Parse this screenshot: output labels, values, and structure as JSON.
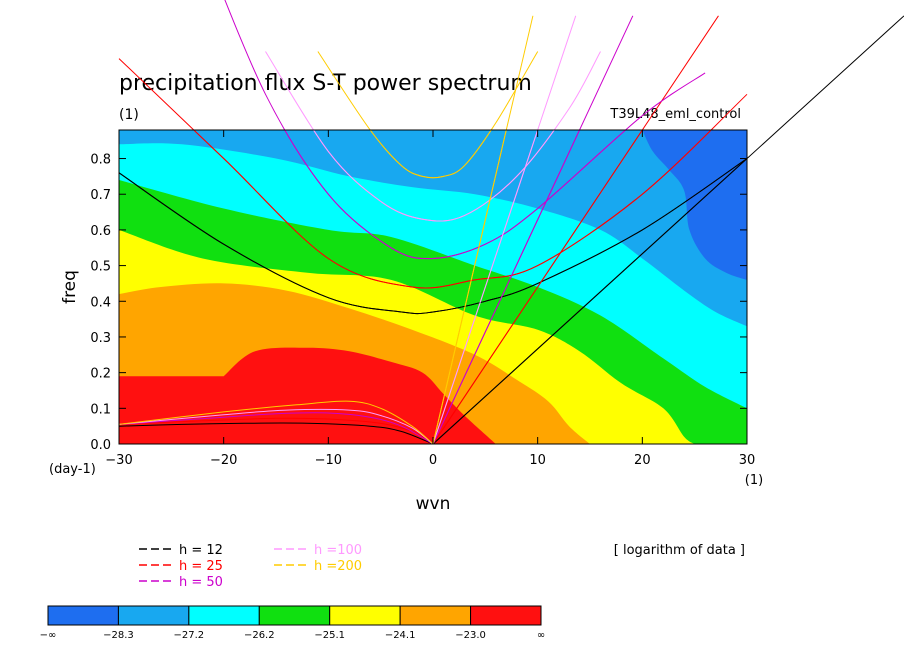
{
  "chart_data": {
    "type": "heatmap",
    "title": "precipitation flux S-T power spectrum",
    "subtitle_left": "(1)",
    "subtitle_right": "T39L48_eml_control",
    "xlabel": "wvn",
    "ylabel": "freq",
    "x_unit_label": "(1)",
    "y_unit_label": "(day-1)",
    "xlim": [
      -30,
      30
    ],
    "ylim": [
      0,
      0.88
    ],
    "x_ticks": [
      -30,
      -20,
      -10,
      0,
      10,
      20,
      30
    ],
    "x_tick_labels": [
      "−30",
      "−20",
      "−10",
      "0",
      "10",
      "20",
      "30"
    ],
    "y_ticks": [
      0,
      0.1,
      0.2,
      0.3,
      0.4,
      0.5,
      0.6,
      0.7,
      0.8
    ],
    "y_tick_labels": [
      "0.0",
      "0.1",
      "0.2",
      "0.3",
      "0.4",
      "0.5",
      "0.6",
      "0.7",
      "0.8"
    ],
    "note": "[ logarithm of data ]",
    "colorbar": {
      "levels": [
        "−∞",
        "−28.3",
        "−27.2",
        "−26.2",
        "−25.1",
        "−24.1",
        "−23.0",
        "∞"
      ],
      "colors": [
        "#1e6ef0",
        "#18a8f0",
        "#00ffff",
        "#10e010",
        "#ffff00",
        "#ffa500",
        "#ff1010"
      ]
    },
    "contour_boundaries": [
      {
        "between": [
          "#1e6ef0",
          "#18a8f0"
        ],
        "points": [
          [
            20,
            0.88
          ],
          [
            21,
            0.82
          ],
          [
            22.5,
            0.77
          ],
          [
            24,
            0.71
          ],
          [
            24.5,
            0.6
          ],
          [
            26,
            0.52
          ],
          [
            28,
            0.48
          ],
          [
            30,
            0.46
          ]
        ]
      },
      {
        "between": [
          "#18a8f0",
          "#00ffff"
        ],
        "points": [
          [
            -30,
            0.84
          ],
          [
            -24,
            0.84
          ],
          [
            -15,
            0.8
          ],
          [
            -8,
            0.75
          ],
          [
            -2,
            0.72
          ],
          [
            4,
            0.7
          ],
          [
            10,
            0.66
          ],
          [
            16,
            0.6
          ],
          [
            20,
            0.52
          ],
          [
            24,
            0.43
          ],
          [
            27,
            0.37
          ],
          [
            30,
            0.33
          ]
        ]
      },
      {
        "between": [
          "#00ffff",
          "#10e010"
        ],
        "points": [
          [
            -30,
            0.74
          ],
          [
            -20,
            0.66
          ],
          [
            -10,
            0.6
          ],
          [
            -4,
            0.58
          ],
          [
            4,
            0.5
          ],
          [
            10,
            0.44
          ],
          [
            16,
            0.36
          ],
          [
            22,
            0.24
          ],
          [
            26,
            0.16
          ],
          [
            30,
            0.1
          ]
        ]
      },
      {
        "between": [
          "#10e010",
          "#ffff00"
        ],
        "points": [
          [
            -30,
            0.6
          ],
          [
            -22,
            0.52
          ],
          [
            -12,
            0.48
          ],
          [
            -4,
            0.46
          ],
          [
            4,
            0.36
          ],
          [
            10,
            0.32
          ],
          [
            14,
            0.26
          ],
          [
            18,
            0.17
          ],
          [
            22,
            0.1
          ],
          [
            24,
            0.02
          ],
          [
            25,
            0
          ]
        ]
      },
      {
        "between": [
          "#ffff00",
          "#ffa500"
        ],
        "points": [
          [
            -30,
            0.42
          ],
          [
            -26,
            0.44
          ],
          [
            -20,
            0.45
          ],
          [
            -14,
            0.43
          ],
          [
            -8,
            0.38
          ],
          [
            -2,
            0.32
          ],
          [
            4,
            0.25
          ],
          [
            8,
            0.18
          ],
          [
            11,
            0.12
          ],
          [
            13,
            0.05
          ],
          [
            15,
            0
          ]
        ]
      },
      {
        "between": [
          "#ffa500",
          "#ff1010"
        ],
        "points": [
          [
            -20,
            0.19
          ],
          [
            -17,
            0.26
          ],
          [
            -12,
            0.27
          ],
          [
            -8,
            0.26
          ],
          [
            -4,
            0.23
          ],
          [
            -1,
            0.2
          ],
          [
            1,
            0.14
          ],
          [
            3,
            0.08
          ],
          [
            6,
            0
          ]
        ]
      }
    ],
    "dispersion_series": [
      {
        "name": "h = 12",
        "color": "#000000",
        "kelvin_x_at_top": 33,
        "curves": [
          {
            "kind": "inertio-gravity",
            "points": [
              [
                -30,
                0.76
              ],
              [
                -20,
                0.56
              ],
              [
                -10,
                0.41
              ],
              [
                -3,
                0.37
              ],
              [
                0,
                0.37
              ],
              [
                5,
                0.4
              ],
              [
                10,
                0.45
              ],
              [
                20,
                0.6
              ],
              [
                30,
                0.8
              ]
            ]
          },
          {
            "kind": "rossby",
            "points": [
              [
                -30,
                0.05
              ],
              [
                -24,
                0.055
              ],
              [
                -18,
                0.058
              ],
              [
                -12,
                0.058
              ],
              [
                -6,
                0.05
              ],
              [
                -3,
                0.035
              ],
              [
                0,
                0
              ]
            ]
          }
        ]
      },
      {
        "name": "h = 25",
        "color": "#ff0000",
        "kelvin_x_at_top": 20,
        "curves": [
          {
            "kind": "inertio-gravity",
            "points": [
              [
                -30,
                1.08
              ],
              [
                -20,
                0.8
              ],
              [
                -10,
                0.52
              ],
              [
                -2,
                0.44
              ],
              [
                4,
                0.46
              ],
              [
                10,
                0.5
              ],
              [
                20,
                0.7
              ],
              [
                30,
                0.98
              ]
            ]
          },
          {
            "kind": "rossby",
            "points": [
              [
                -30,
                0.055
              ],
              [
                -22,
                0.065
              ],
              [
                -15,
                0.072
              ],
              [
                -10,
                0.07
              ],
              [
                -5,
                0.058
              ],
              [
                -2,
                0.035
              ],
              [
                0,
                0
              ]
            ]
          }
        ]
      },
      {
        "name": "h = 50",
        "color": "#cc00cc",
        "kelvin_x_at_top": 14,
        "curves": [
          {
            "kind": "inertio-gravity",
            "points": [
              [
                -22,
                1.4
              ],
              [
                -16,
                0.98
              ],
              [
                -10,
                0.7
              ],
              [
                -4,
                0.55
              ],
              [
                0,
                0.52
              ],
              [
                5,
                0.56
              ],
              [
                10,
                0.66
              ],
              [
                20,
                0.92
              ],
              [
                26,
                1.04
              ]
            ]
          },
          {
            "kind": "rossby",
            "points": [
              [
                -30,
                0.055
              ],
              [
                -20,
                0.075
              ],
              [
                -15,
                0.085
              ],
              [
                -10,
                0.087
              ],
              [
                -6,
                0.075
              ],
              [
                -3,
                0.05
              ],
              [
                0,
                0
              ]
            ]
          }
        ]
      },
      {
        "name": "h =100",
        "color": "#ff99ff",
        "kelvin_x_at_top": 10,
        "curves": [
          {
            "kind": "inertio-gravity",
            "points": [
              [
                -16,
                1.1
              ],
              [
                -10,
                0.82
              ],
              [
                -5,
                0.68
              ],
              [
                -1,
                0.63
              ],
              [
                3,
                0.64
              ],
              [
                8,
                0.75
              ],
              [
                13,
                0.94
              ],
              [
                16,
                1.1
              ]
            ]
          },
          {
            "kind": "rossby",
            "points": [
              [
                -30,
                0.055
              ],
              [
                -20,
                0.082
              ],
              [
                -14,
                0.095
              ],
              [
                -8,
                0.095
              ],
              [
                -5,
                0.08
              ],
              [
                -2,
                0.045
              ],
              [
                0,
                0
              ]
            ]
          }
        ]
      },
      {
        "name": "h =200",
        "color": "#ffcc00",
        "kelvin_x_at_top": 7,
        "curves": [
          {
            "kind": "inertio-gravity",
            "points": [
              [
                -11,
                1.1
              ],
              [
                -6,
                0.88
              ],
              [
                -3,
                0.78
              ],
              [
                -1,
                0.75
              ],
              [
                1,
                0.75
              ],
              [
                3,
                0.78
              ],
              [
                6,
                0.9
              ],
              [
                10,
                1.1
              ]
            ]
          },
          {
            "kind": "rossby",
            "points": [
              [
                -30,
                0.055
              ],
              [
                -20,
                0.09
              ],
              [
                -13,
                0.11
              ],
              [
                -8,
                0.12
              ],
              [
                -5,
                0.1
              ],
              [
                -2,
                0.05
              ],
              [
                0,
                0
              ]
            ]
          }
        ]
      }
    ]
  }
}
